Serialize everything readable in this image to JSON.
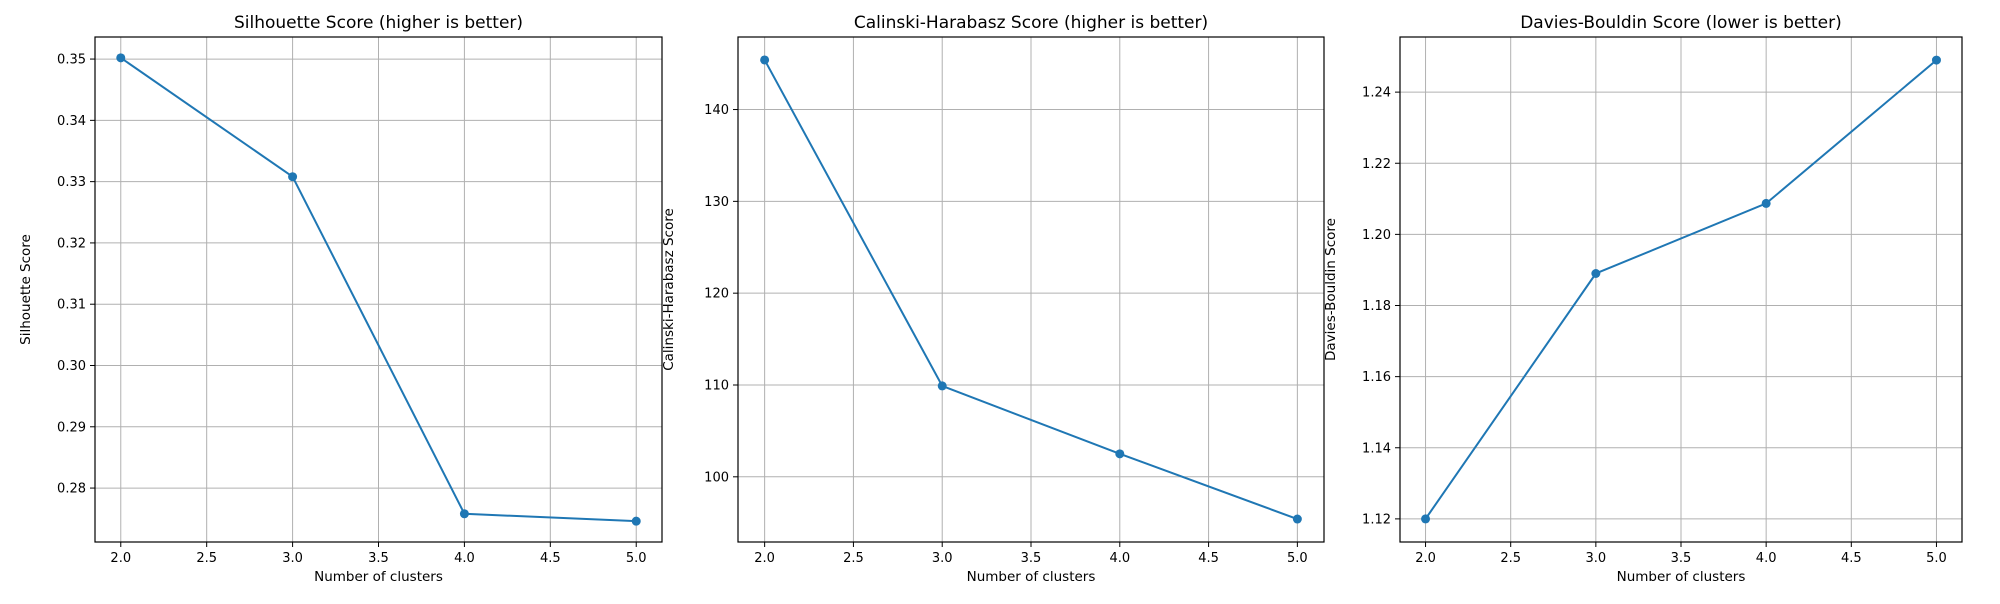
{
  "chart_data": [
    {
      "type": "line",
      "title": "Silhouette Score (higher is better)",
      "xlabel": "Number of clusters",
      "ylabel": "Silhouette Score",
      "x": [
        2,
        3,
        4,
        5
      ],
      "y": [
        0.3502,
        0.3308,
        0.2758,
        0.2746
      ],
      "xlim": [
        1.85,
        5.15
      ],
      "ylim": [
        0.2712,
        0.3536
      ],
      "xticks": [
        2.0,
        2.5,
        3.0,
        3.5,
        4.0,
        4.5,
        5.0
      ],
      "xtick_labels": [
        "2.0",
        "2.5",
        "3.0",
        "3.5",
        "4.0",
        "4.5",
        "5.0"
      ],
      "yticks": [
        0.28,
        0.29,
        0.3,
        0.31,
        0.32,
        0.33,
        0.34,
        0.35
      ],
      "ytick_labels": [
        "0.28",
        "0.29",
        "0.30",
        "0.31",
        "0.32",
        "0.33",
        "0.34",
        "0.35"
      ],
      "grid": true,
      "marker": "circle",
      "color": "#1f77b4"
    },
    {
      "type": "line",
      "title": "Calinski-Harabasz Score (higher is better)",
      "xlabel": "Number of clusters",
      "ylabel": "Calinski-Harabasz Score",
      "x": [
        2,
        3,
        4,
        5
      ],
      "y": [
        145.4,
        109.9,
        102.5,
        95.4
      ],
      "xlim": [
        1.85,
        5.15
      ],
      "ylim": [
        92.9,
        147.9
      ],
      "xticks": [
        2.0,
        2.5,
        3.0,
        3.5,
        4.0,
        4.5,
        5.0
      ],
      "xtick_labels": [
        "2.0",
        "2.5",
        "3.0",
        "3.5",
        "4.0",
        "4.5",
        "5.0"
      ],
      "yticks": [
        100,
        110,
        120,
        130,
        140
      ],
      "ytick_labels": [
        "100",
        "110",
        "120",
        "130",
        "140"
      ],
      "grid": true,
      "marker": "circle",
      "color": "#1f77b4"
    },
    {
      "type": "line",
      "title": "Davies-Bouldin Score (lower is better)",
      "xlabel": "Number of clusters",
      "ylabel": "Davies-Bouldin Score",
      "x": [
        2,
        3,
        4,
        5
      ],
      "y": [
        1.12,
        1.189,
        1.2087,
        1.249
      ],
      "xlim": [
        1.85,
        5.15
      ],
      "ylim": [
        1.1135,
        1.2555
      ],
      "xticks": [
        2.0,
        2.5,
        3.0,
        3.5,
        4.0,
        4.5,
        5.0
      ],
      "xtick_labels": [
        "2.0",
        "2.5",
        "3.0",
        "3.5",
        "4.0",
        "4.5",
        "5.0"
      ],
      "yticks": [
        1.12,
        1.14,
        1.16,
        1.18,
        1.2,
        1.22,
        1.24
      ],
      "ytick_labels": [
        "1.12",
        "1.14",
        "1.16",
        "1.18",
        "1.20",
        "1.22",
        "1.24"
      ],
      "grid": true,
      "marker": "circle",
      "color": "#1f77b4"
    }
  ]
}
